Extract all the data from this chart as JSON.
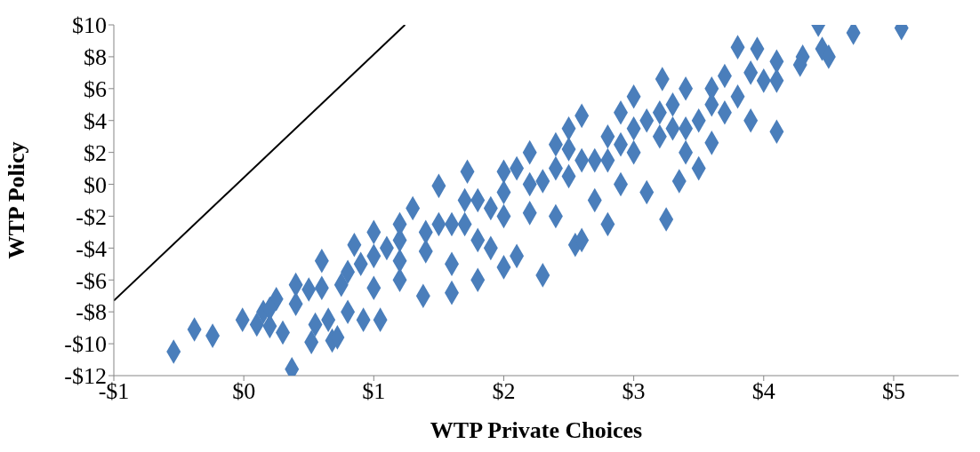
{
  "chart_data": {
    "type": "scatter",
    "xlabel": "WTP Private Choices",
    "ylabel": "WTP Policy",
    "xlim": [
      -1,
      5.5
    ],
    "xticks": [
      {
        "value": -1,
        "label": "-$1"
      },
      {
        "value": 0,
        "label": "$0"
      },
      {
        "value": 1,
        "label": "$1"
      },
      {
        "value": 2,
        "label": "$2"
      },
      {
        "value": 3,
        "label": "$3"
      },
      {
        "value": 4,
        "label": "$4"
      },
      {
        "value": 5,
        "label": "$5"
      }
    ],
    "ylim": [
      -12,
      10
    ],
    "yticks": [
      {
        "value": -12,
        "label": "-$12"
      },
      {
        "value": -10,
        "label": "-$10"
      },
      {
        "value": -8,
        "label": "-$8"
      },
      {
        "value": -6,
        "label": "-$6"
      },
      {
        "value": -4,
        "label": "-$4"
      },
      {
        "value": -2,
        "label": "-$2"
      },
      {
        "value": 0,
        "label": "$0"
      },
      {
        "value": 2,
        "label": "$2"
      },
      {
        "value": 4,
        "label": "$4"
      },
      {
        "value": 6,
        "label": "$6"
      },
      {
        "value": 8,
        "label": "$8"
      },
      {
        "value": 10,
        "label": "$10"
      }
    ],
    "series": [
      {
        "marker": "diamond",
        "color": "#4a7ebb",
        "x": [
          -0.54,
          -0.38,
          -0.24,
          -0.01,
          0.37,
          0.52,
          0.68,
          0.72,
          0.15,
          0.2,
          0.3,
          0.1,
          0.25,
          0.4,
          0.5,
          0.6,
          0.55,
          0.65,
          0.8,
          0.85,
          0.92,
          1.05,
          0.75,
          0.9,
          1.0,
          1.1,
          1.2,
          1.2,
          1.3,
          1.38,
          1.5,
          1.4,
          1.6,
          1.6,
          1.6,
          1.7,
          1.72,
          1.8,
          1.8,
          1.9,
          1.9,
          2.0,
          2.0,
          2.0,
          2.1,
          2.1,
          2.2,
          2.2,
          2.3,
          2.3,
          2.4,
          2.4,
          2.5,
          2.5,
          2.55,
          2.6,
          2.6,
          2.7,
          2.7,
          2.8,
          2.8,
          2.9,
          2.9,
          3.0,
          3.0,
          3.1,
          3.1,
          3.2,
          3.22,
          3.25,
          3.3,
          3.35,
          3.4,
          3.4,
          3.5,
          3.5,
          3.6,
          3.6,
          3.7,
          3.7,
          3.8,
          3.8,
          3.9,
          3.95,
          3.9,
          4.0,
          4.1,
          4.1,
          4.1,
          4.3,
          4.28,
          4.42,
          4.45,
          4.5,
          4.69,
          5.06,
          1.0,
          1.2,
          1.4,
          1.5,
          1.7,
          1.8,
          2.0,
          2.2,
          2.4,
          2.6,
          2.8,
          3.0,
          3.2,
          3.4,
          3.6,
          0.6,
          0.8,
          0.4,
          0.2,
          1.2,
          1.0,
          2.5,
          2.9,
          3.3
        ],
        "values": [
          -10.5,
          -9.1,
          -9.5,
          -8.5,
          -11.6,
          -9.9,
          -9.8,
          -9.6,
          -8.0,
          -8.9,
          -9.3,
          -8.8,
          -7.2,
          -6.3,
          -6.6,
          -4.8,
          -8.8,
          -8.5,
          -8.0,
          -3.8,
          -8.5,
          -8.5,
          -6.3,
          -5.0,
          -6.5,
          -4.0,
          -3.5,
          -6.0,
          -1.5,
          -7.0,
          -0.1,
          -4.2,
          -2.5,
          -5.0,
          -6.8,
          -1.0,
          0.8,
          -3.5,
          -6.0,
          -1.5,
          -4.0,
          0.8,
          -2.0,
          -5.2,
          1.0,
          -4.5,
          -1.8,
          2.0,
          -5.7,
          0.2,
          2.5,
          -2.0,
          3.5,
          0.5,
          -3.8,
          -3.5,
          4.3,
          1.5,
          -1.0,
          3.0,
          -2.5,
          4.5,
          0.0,
          2.0,
          5.5,
          4.0,
          -0.5,
          3.0,
          6.6,
          -2.2,
          5.0,
          0.2,
          2.0,
          6.0,
          4.0,
          1.0,
          5.0,
          2.6,
          6.8,
          4.5,
          8.6,
          5.5,
          7.0,
          8.5,
          4.0,
          6.5,
          3.3,
          7.7,
          6.5,
          8.0,
          7.5,
          10.0,
          8.5,
          8.0,
          9.5,
          9.8,
          -4.5,
          -4.8,
          -3.0,
          -2.5,
          -2.5,
          -1.0,
          -0.5,
          0.0,
          1.0,
          1.5,
          1.5,
          3.5,
          4.5,
          3.5,
          6.0,
          -6.5,
          -5.5,
          -7.5,
          -7.8,
          -2.5,
          -3.0,
          2.2,
          2.5,
          3.5
        ]
      },
      {
        "type": "line",
        "color": "#000000",
        "x": [
          -1,
          1.24
        ],
        "values": [
          -7.3,
          10
        ]
      }
    ]
  }
}
